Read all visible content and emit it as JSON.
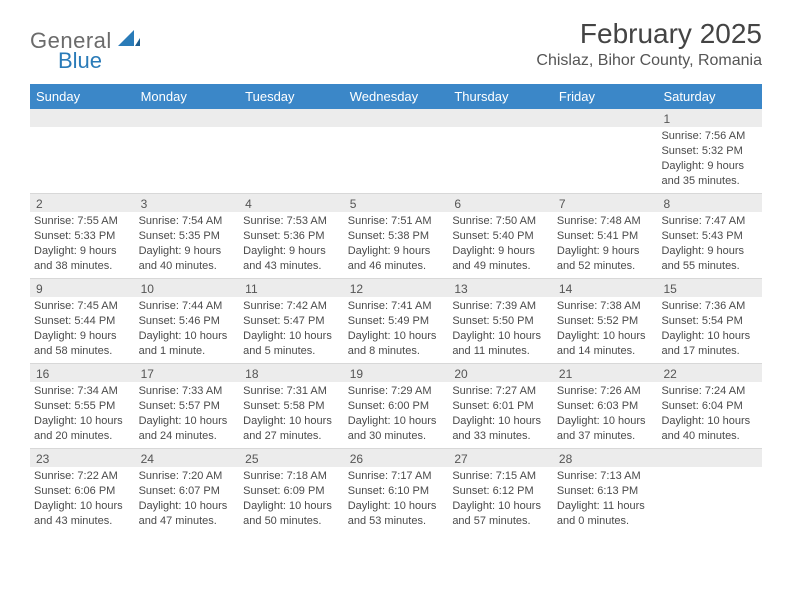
{
  "brand": {
    "text_general": "General",
    "text_blue": "Blue"
  },
  "title": "February 2025",
  "location": "Chislaz, Bihor County, Romania",
  "colors": {
    "header_bg": "#3b87c8",
    "header_text": "#ffffff",
    "daynum_bg": "#ececec",
    "text": "#4a4a4a",
    "brand_gray": "#6b6b6b",
    "brand_blue": "#2a7bb8",
    "page_bg": "#ffffff",
    "divider": "#d8d8d8"
  },
  "day_names": [
    "Sunday",
    "Monday",
    "Tuesday",
    "Wednesday",
    "Thursday",
    "Friday",
    "Saturday"
  ],
  "weeks": [
    [
      {
        "n": "",
        "sr": "",
        "ss": "",
        "dl": ""
      },
      {
        "n": "",
        "sr": "",
        "ss": "",
        "dl": ""
      },
      {
        "n": "",
        "sr": "",
        "ss": "",
        "dl": ""
      },
      {
        "n": "",
        "sr": "",
        "ss": "",
        "dl": ""
      },
      {
        "n": "",
        "sr": "",
        "ss": "",
        "dl": ""
      },
      {
        "n": "",
        "sr": "",
        "ss": "",
        "dl": ""
      },
      {
        "n": "1",
        "sr": "Sunrise: 7:56 AM",
        "ss": "Sunset: 5:32 PM",
        "dl": "Daylight: 9 hours and 35 minutes."
      }
    ],
    [
      {
        "n": "2",
        "sr": "Sunrise: 7:55 AM",
        "ss": "Sunset: 5:33 PM",
        "dl": "Daylight: 9 hours and 38 minutes."
      },
      {
        "n": "3",
        "sr": "Sunrise: 7:54 AM",
        "ss": "Sunset: 5:35 PM",
        "dl": "Daylight: 9 hours and 40 minutes."
      },
      {
        "n": "4",
        "sr": "Sunrise: 7:53 AM",
        "ss": "Sunset: 5:36 PM",
        "dl": "Daylight: 9 hours and 43 minutes."
      },
      {
        "n": "5",
        "sr": "Sunrise: 7:51 AM",
        "ss": "Sunset: 5:38 PM",
        "dl": "Daylight: 9 hours and 46 minutes."
      },
      {
        "n": "6",
        "sr": "Sunrise: 7:50 AM",
        "ss": "Sunset: 5:40 PM",
        "dl": "Daylight: 9 hours and 49 minutes."
      },
      {
        "n": "7",
        "sr": "Sunrise: 7:48 AM",
        "ss": "Sunset: 5:41 PM",
        "dl": "Daylight: 9 hours and 52 minutes."
      },
      {
        "n": "8",
        "sr": "Sunrise: 7:47 AM",
        "ss": "Sunset: 5:43 PM",
        "dl": "Daylight: 9 hours and 55 minutes."
      }
    ],
    [
      {
        "n": "9",
        "sr": "Sunrise: 7:45 AM",
        "ss": "Sunset: 5:44 PM",
        "dl": "Daylight: 9 hours and 58 minutes."
      },
      {
        "n": "10",
        "sr": "Sunrise: 7:44 AM",
        "ss": "Sunset: 5:46 PM",
        "dl": "Daylight: 10 hours and 1 minute."
      },
      {
        "n": "11",
        "sr": "Sunrise: 7:42 AM",
        "ss": "Sunset: 5:47 PM",
        "dl": "Daylight: 10 hours and 5 minutes."
      },
      {
        "n": "12",
        "sr": "Sunrise: 7:41 AM",
        "ss": "Sunset: 5:49 PM",
        "dl": "Daylight: 10 hours and 8 minutes."
      },
      {
        "n": "13",
        "sr": "Sunrise: 7:39 AM",
        "ss": "Sunset: 5:50 PM",
        "dl": "Daylight: 10 hours and 11 minutes."
      },
      {
        "n": "14",
        "sr": "Sunrise: 7:38 AM",
        "ss": "Sunset: 5:52 PM",
        "dl": "Daylight: 10 hours and 14 minutes."
      },
      {
        "n": "15",
        "sr": "Sunrise: 7:36 AM",
        "ss": "Sunset: 5:54 PM",
        "dl": "Daylight: 10 hours and 17 minutes."
      }
    ],
    [
      {
        "n": "16",
        "sr": "Sunrise: 7:34 AM",
        "ss": "Sunset: 5:55 PM",
        "dl": "Daylight: 10 hours and 20 minutes."
      },
      {
        "n": "17",
        "sr": "Sunrise: 7:33 AM",
        "ss": "Sunset: 5:57 PM",
        "dl": "Daylight: 10 hours and 24 minutes."
      },
      {
        "n": "18",
        "sr": "Sunrise: 7:31 AM",
        "ss": "Sunset: 5:58 PM",
        "dl": "Daylight: 10 hours and 27 minutes."
      },
      {
        "n": "19",
        "sr": "Sunrise: 7:29 AM",
        "ss": "Sunset: 6:00 PM",
        "dl": "Daylight: 10 hours and 30 minutes."
      },
      {
        "n": "20",
        "sr": "Sunrise: 7:27 AM",
        "ss": "Sunset: 6:01 PM",
        "dl": "Daylight: 10 hours and 33 minutes."
      },
      {
        "n": "21",
        "sr": "Sunrise: 7:26 AM",
        "ss": "Sunset: 6:03 PM",
        "dl": "Daylight: 10 hours and 37 minutes."
      },
      {
        "n": "22",
        "sr": "Sunrise: 7:24 AM",
        "ss": "Sunset: 6:04 PM",
        "dl": "Daylight: 10 hours and 40 minutes."
      }
    ],
    [
      {
        "n": "23",
        "sr": "Sunrise: 7:22 AM",
        "ss": "Sunset: 6:06 PM",
        "dl": "Daylight: 10 hours and 43 minutes."
      },
      {
        "n": "24",
        "sr": "Sunrise: 7:20 AM",
        "ss": "Sunset: 6:07 PM",
        "dl": "Daylight: 10 hours and 47 minutes."
      },
      {
        "n": "25",
        "sr": "Sunrise: 7:18 AM",
        "ss": "Sunset: 6:09 PM",
        "dl": "Daylight: 10 hours and 50 minutes."
      },
      {
        "n": "26",
        "sr": "Sunrise: 7:17 AM",
        "ss": "Sunset: 6:10 PM",
        "dl": "Daylight: 10 hours and 53 minutes."
      },
      {
        "n": "27",
        "sr": "Sunrise: 7:15 AM",
        "ss": "Sunset: 6:12 PM",
        "dl": "Daylight: 10 hours and 57 minutes."
      },
      {
        "n": "28",
        "sr": "Sunrise: 7:13 AM",
        "ss": "Sunset: 6:13 PM",
        "dl": "Daylight: 11 hours and 0 minutes."
      },
      {
        "n": "",
        "sr": "",
        "ss": "",
        "dl": ""
      }
    ]
  ]
}
